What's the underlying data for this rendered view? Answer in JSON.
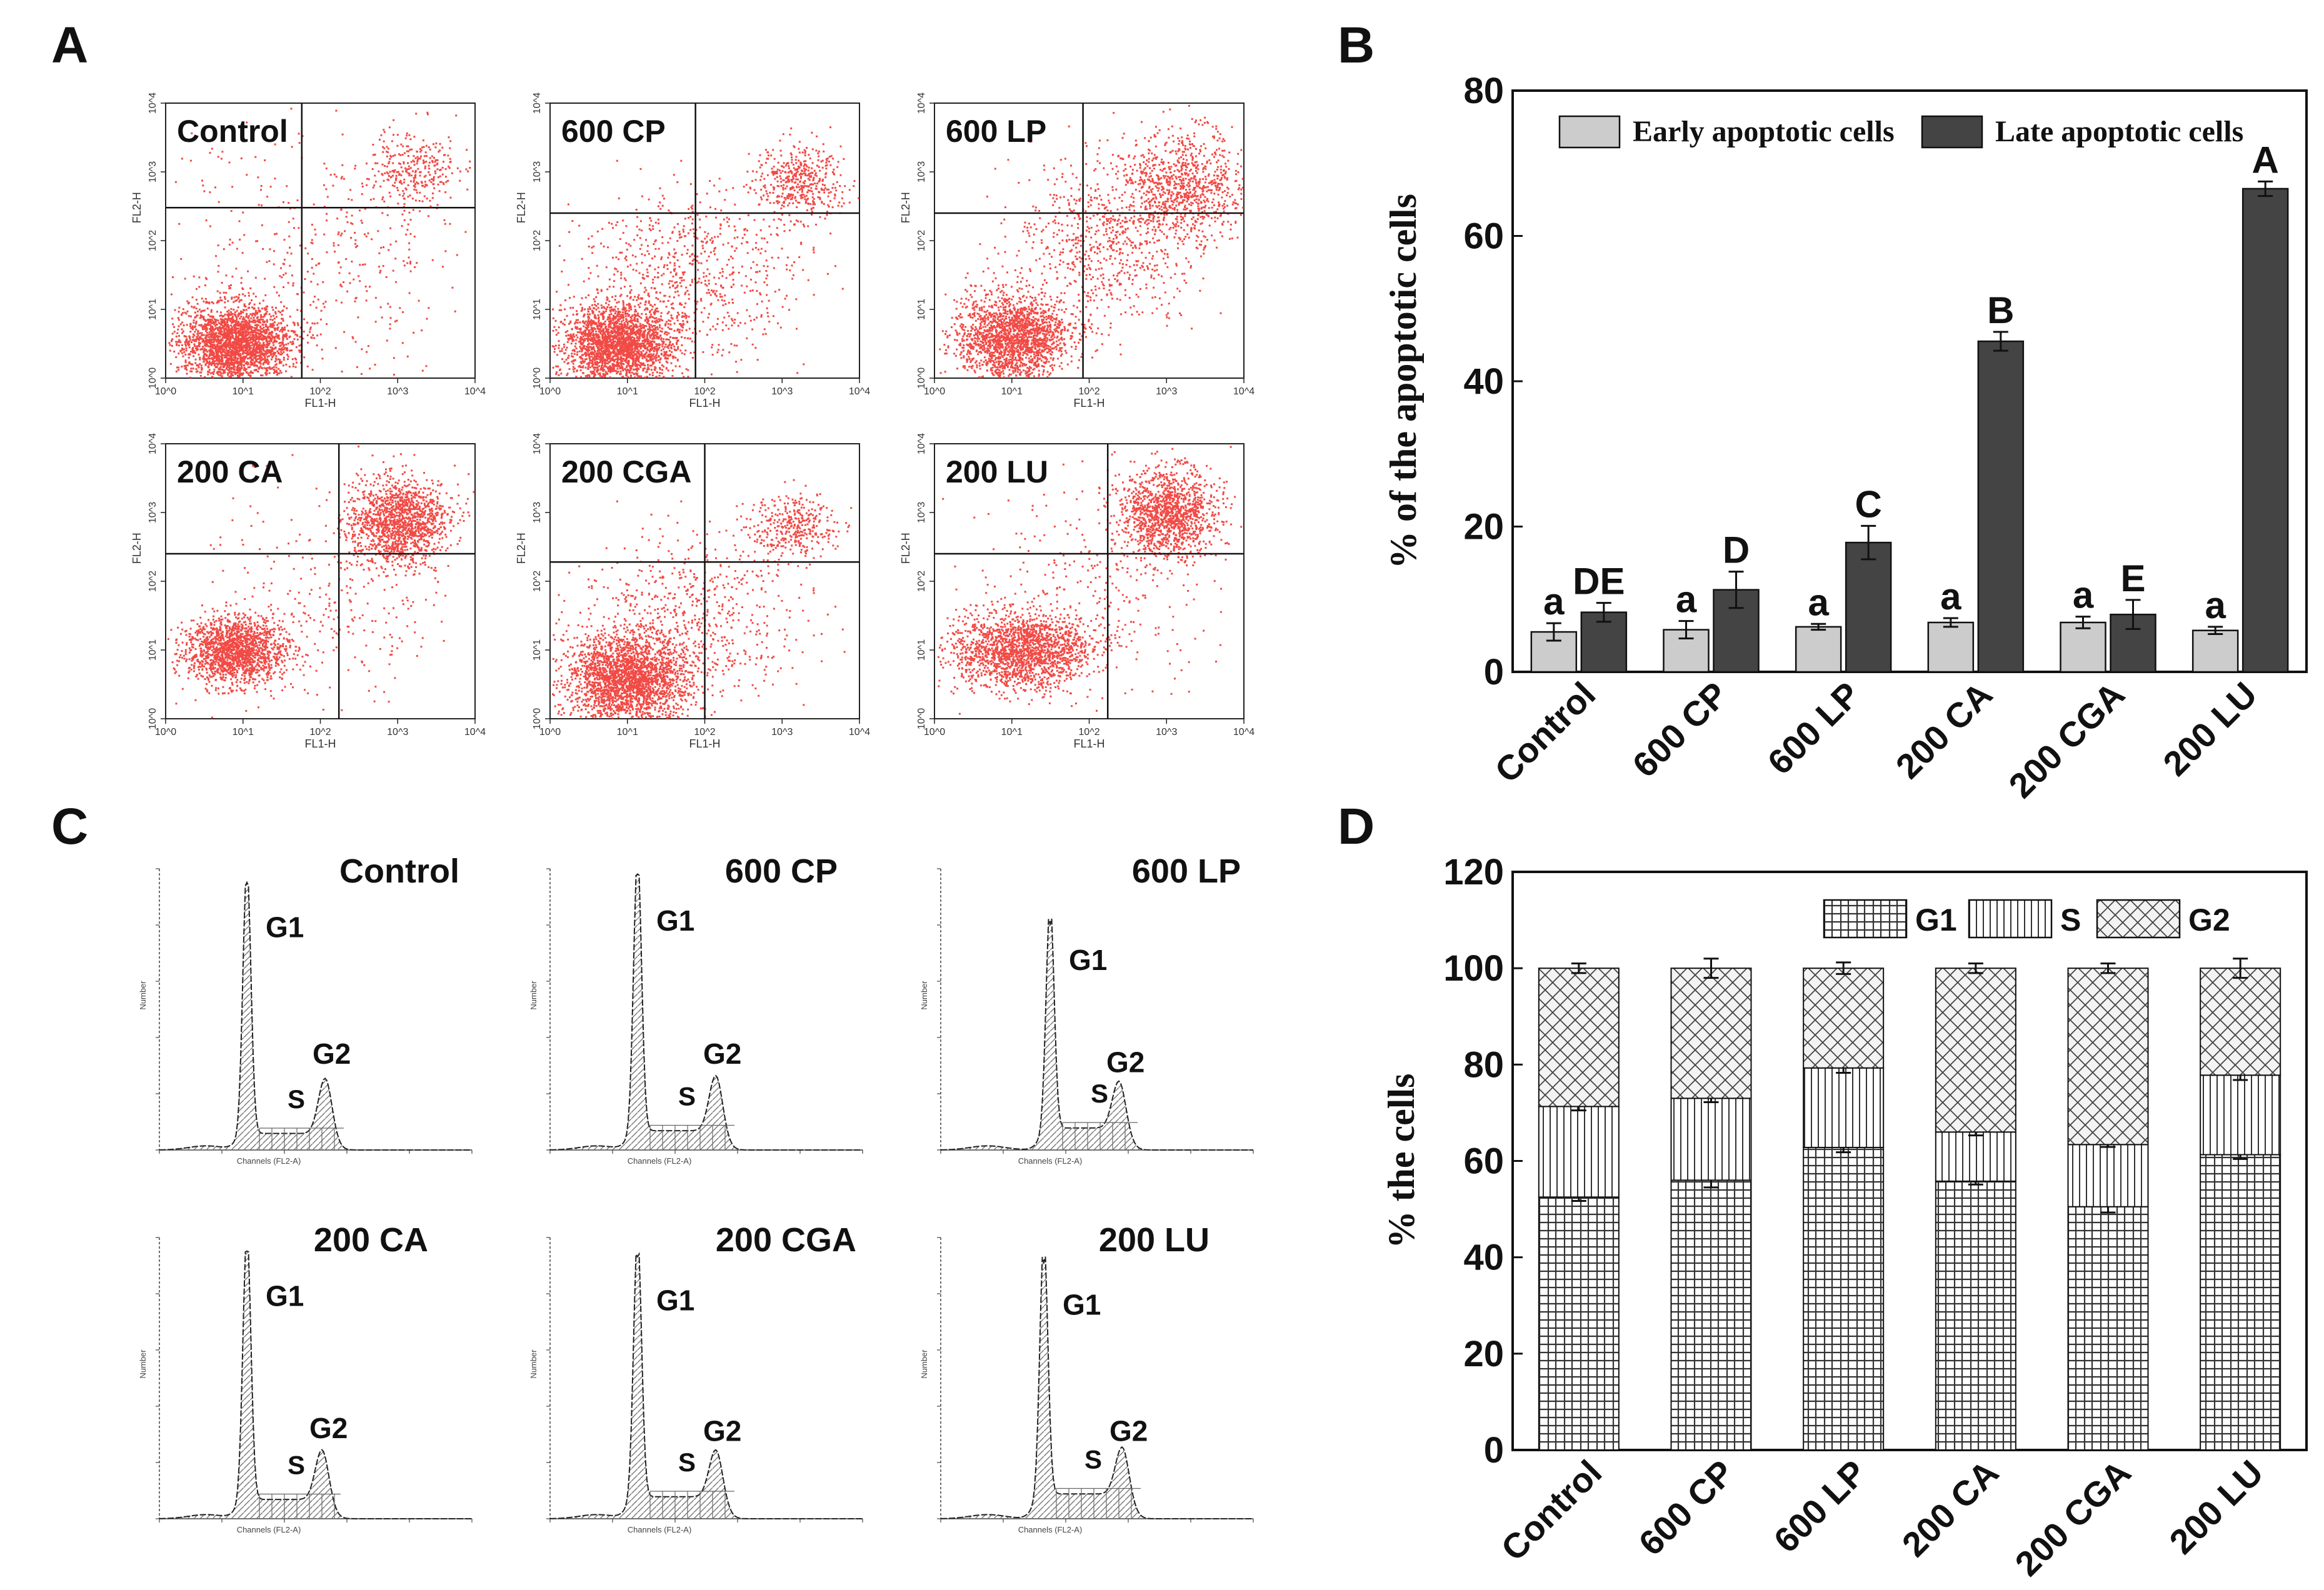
{
  "panel_letters": [
    "A",
    "B",
    "C",
    "D"
  ],
  "panel_a": {
    "xaxis_label": "FL1-H",
    "yaxis_labels": [
      "FL2-H",
      "FL2-H",
      "FL2-H",
      "FL2-H",
      "FL2-H",
      "FL2-H"
    ],
    "tick_labels": [
      "10^0",
      "10^1",
      "10^2",
      "10^3",
      "10^4"
    ],
    "plots": [
      "Control",
      "600 CP",
      "600 LP",
      "200 CA",
      "200 CGA",
      "200 LU"
    ]
  },
  "panel_c": {
    "xaxis_label": "Channels (FL2-A)",
    "yaxis_label": "Number",
    "plots": [
      "Control",
      "600 CP",
      "600 LP",
      "200 CA",
      "200 CGA",
      "200 LU"
    ],
    "peaks": {
      "g1": "G1",
      "s": "S",
      "g2": "G2"
    }
  },
  "chart_data": [
    {
      "panel": "B",
      "type": "bar",
      "title": "",
      "xlabel": "",
      "ylabel": "% of the apoptotic cells",
      "ylim": [
        0,
        80
      ],
      "yticks": [
        "0",
        "20",
        "40",
        "60",
        "80"
      ],
      "categories": [
        "Control",
        "600 CP",
        "600 LP",
        "200 CA",
        "200 CGA",
        "200 LU"
      ],
      "series": [
        {
          "name": "Early apoptotic cells",
          "color": "#cccccc",
          "values": [
            5.5,
            5.8,
            6.2,
            6.8,
            6.8,
            5.7
          ],
          "errors": [
            1.2,
            1.2,
            0.4,
            0.6,
            0.8,
            0.5
          ],
          "letters": [
            "a",
            "a",
            "a",
            "a",
            "a",
            "a"
          ]
        },
        {
          "name": "Late apoptotic cells",
          "color": "#444444",
          "values": [
            8.2,
            11.3,
            17.8,
            45.5,
            7.9,
            66.5
          ],
          "errors": [
            1.3,
            2.5,
            2.3,
            1.3,
            2.0,
            1.0
          ],
          "letters": [
            "DE",
            "D",
            "C",
            "B",
            "E",
            "A"
          ]
        }
      ],
      "legend_position": "top"
    },
    {
      "panel": "D",
      "type": "bar",
      "stacked": true,
      "title": "",
      "xlabel": "",
      "ylabel": "% the cells",
      "ylim": [
        0,
        120
      ],
      "yticks": [
        "0",
        "20",
        "40",
        "60",
        "80",
        "100",
        "120"
      ],
      "categories": [
        "Control",
        "600 CP",
        "600 LP",
        "200 CA",
        "200 CGA",
        "200 LU"
      ],
      "series": [
        {
          "name": "G1",
          "values": [
            52.5,
            56.0,
            62.8,
            55.8,
            50.5,
            61.3
          ],
          "errors": [
            0.8,
            1.5,
            1.0,
            0.7,
            1.2,
            0.9
          ]
        },
        {
          "name": "S",
          "values": [
            18.8,
            17.0,
            16.5,
            10.2,
            12.9,
            16.5
          ],
          "errors": [
            0.8,
            0.8,
            1.0,
            0.7,
            0.5,
            1.0
          ]
        },
        {
          "name": "G2",
          "values": [
            28.7,
            27.0,
            20.7,
            34.0,
            36.6,
            22.2
          ],
          "errors": [
            1.0,
            2.0,
            1.2,
            1.0,
            1.0,
            2.0
          ]
        }
      ],
      "legend_position": "top-right"
    }
  ]
}
